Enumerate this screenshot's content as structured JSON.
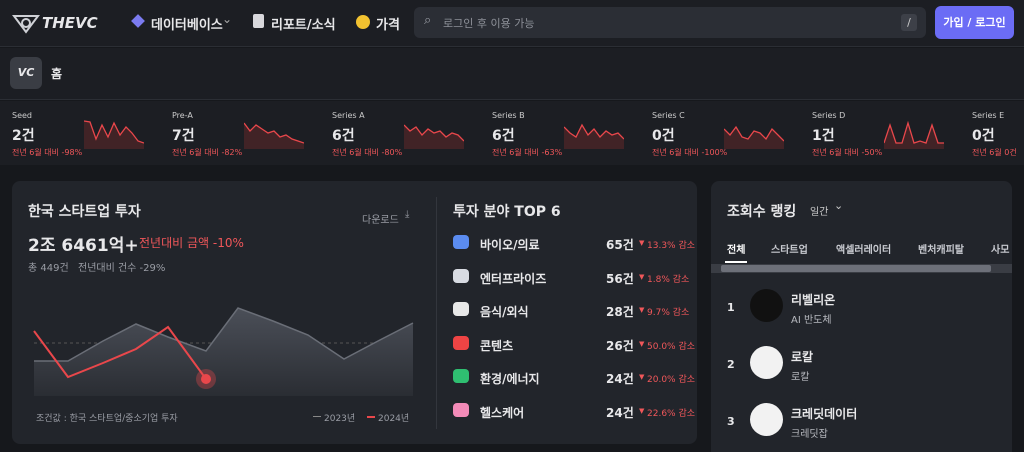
{
  "nav": {
    "logo": "THEVC",
    "menu": [
      "데이터베이스",
      "리포트/소식",
      "가격"
    ],
    "search_placeholder": "로그인 후 이용 가능",
    "search_shortcut": "/",
    "login_button": "가입 / 로그인"
  },
  "breadcrumb": "홈",
  "stages": [
    {
      "name": "Seed",
      "count": "2건",
      "change": "전년 6월 대비 -98%"
    },
    {
      "name": "Pre-A",
      "count": "7건",
      "change": "전년 6월 대비 -82%"
    },
    {
      "name": "Series A",
      "count": "6건",
      "change": "전년 6월 대비 -80%"
    },
    {
      "name": "Series B",
      "count": "6건",
      "change": "전년 6월 대비 -63%"
    },
    {
      "name": "Series C",
      "count": "0건",
      "change": "전년 6월 대비 -100%"
    },
    {
      "name": "Series D",
      "count": "1건",
      "change": "전년 6월 대비 -50%"
    },
    {
      "name": "Series E",
      "count": "0건",
      "change": "전년 6월 0건"
    }
  ],
  "investment": {
    "title": "한국 스타트업 투자",
    "download": "다운로드",
    "amount": "2조 6461억+",
    "amount_change": "전년대비 금액 -10%",
    "total": "총 449건",
    "count_change": "전년대비 건수 -29%",
    "footnote": "조건값 : 한국 스타트업/중소기업 투자",
    "legend": [
      "2023년",
      "2024년"
    ]
  },
  "top6": {
    "title": "투자 분야 TOP 6",
    "items": [
      {
        "name": "바이오/의료",
        "count": "65건",
        "change": "13.3% 감소"
      },
      {
        "name": "엔터프라이즈",
        "count": "56건",
        "change": "1.8% 감소"
      },
      {
        "name": "음식/외식",
        "count": "28건",
        "change": "9.7% 감소"
      },
      {
        "name": "콘텐츠",
        "count": "26건",
        "change": "50.0% 감소"
      },
      {
        "name": "환경/에너지",
        "count": "24건",
        "change": "20.0% 감소"
      },
      {
        "name": "헬스케어",
        "count": "24건",
        "change": "22.6% 감소"
      }
    ]
  },
  "ranking": {
    "title": "조회수 랭킹",
    "period": "일간",
    "tabs": [
      "전체",
      "스타트업",
      "액셀러레이터",
      "벤처캐피탈",
      "사모"
    ],
    "items": [
      {
        "rank": "1",
        "name": "리벨리온",
        "desc": "AI 반도체"
      },
      {
        "rank": "2",
        "name": "로칼",
        "desc": "로칼"
      },
      {
        "rank": "3",
        "name": "크레딧데이터",
        "desc": "크레딧잡"
      }
    ]
  }
}
